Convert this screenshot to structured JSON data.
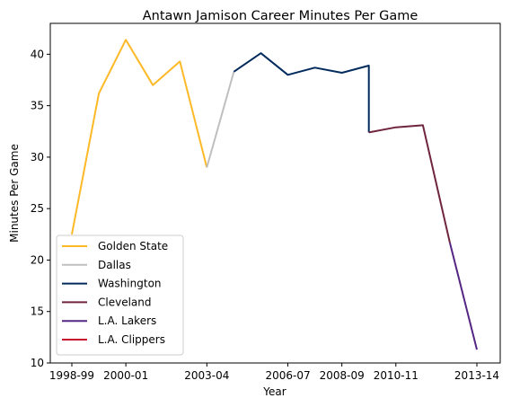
{
  "chart_data": {
    "type": "line",
    "title": "Antawn Jamison Career Minutes Per Game",
    "xlabel": "Year",
    "ylabel": "Minutes Per Game",
    "ylim": [
      10,
      43
    ],
    "yticks": [
      10,
      15,
      20,
      25,
      30,
      35,
      40
    ],
    "x_categories": [
      "1998-99",
      "1999-00",
      "2000-01",
      "2001-02",
      "2002-03",
      "2003-04",
      "2004-05",
      "2005-06",
      "2006-07",
      "2007-08",
      "2008-09",
      "2009-10",
      "2010-11",
      "2011-12",
      "2012-13",
      "2013-14"
    ],
    "xticks": [
      "1998-99",
      "2000-01",
      "2003-04",
      "2006-07",
      "2008-09",
      "2010-11",
      "2013-14"
    ],
    "grid": false,
    "legend_position": "lower-left",
    "series": [
      {
        "name": "Golden State",
        "color": "#FDB927",
        "points": [
          [
            "1998-99",
            22.5
          ],
          [
            "1999-00",
            36.2
          ],
          [
            "2000-01",
            41.4
          ],
          [
            "2001-02",
            37.0
          ],
          [
            "2002-03",
            39.3
          ],
          [
            "2003-04",
            29.0
          ]
        ]
      },
      {
        "name": "Dallas",
        "color": "#BFBFBF",
        "points": [
          [
            "2003-04",
            29.0
          ],
          [
            "2004-05",
            38.3
          ]
        ]
      },
      {
        "name": "Washington",
        "color": "#002B5C",
        "points": [
          [
            "2004-05",
            38.3
          ],
          [
            "2005-06",
            40.1
          ],
          [
            "2006-07",
            38.0
          ],
          [
            "2007-08",
            38.7
          ],
          [
            "2008-09",
            38.2
          ],
          [
            "2009-10",
            38.9
          ],
          [
            "2009-10",
            32.4
          ]
        ]
      },
      {
        "name": "Cleveland",
        "color": "#6F263D",
        "points": [
          [
            "2009-10",
            32.4
          ],
          [
            "2010-11",
            32.9
          ],
          [
            "2011-12",
            33.1
          ],
          [
            "2012-13",
            21.7
          ]
        ]
      },
      {
        "name": "L.A. Lakers",
        "color": "#552583",
        "points": [
          [
            "2012-13",
            21.7
          ],
          [
            "2013-14",
            11.3
          ]
        ]
      },
      {
        "name": "L.A. Clippers",
        "color": "#C8102E",
        "points": [
          [
            "2013-14",
            11.3
          ]
        ]
      }
    ]
  }
}
